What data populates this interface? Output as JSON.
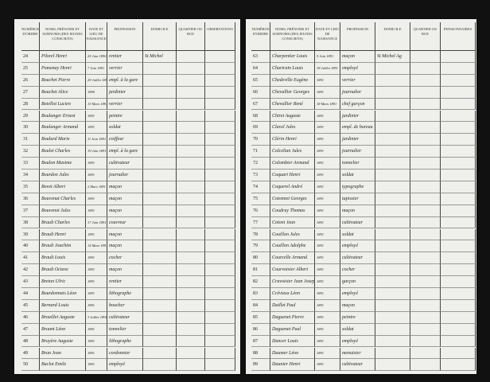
{
  "pages": [
    {
      "headers": [
        "Numéros d'ordre",
        "Noms, prénoms et surnoms (des jeunes conscrits)",
        "Date et lieu de naissance",
        "Profession",
        "Domicile",
        "Quartier ou rue",
        "Observations"
      ],
      "rows": [
        {
          "num": "24",
          "name": "Pilorel Henri",
          "birth": "25 Juin 1890",
          "profession": "rentier",
          "domicile": "St Michel"
        },
        {
          "num": "25",
          "name": "Pomenay Henri",
          "birth": "7 Juin 1891",
          "profession": "verrier"
        },
        {
          "num": "26",
          "name": "Bouchet Pierre",
          "birth": "29 Juillet 1891",
          "profession": "empl. à la gare"
        },
        {
          "num": "27",
          "name": "Bouchet Alice",
          "birth": "1890",
          "profession": "jardinier"
        },
        {
          "num": "28",
          "name": "Boiellot Lucien",
          "birth": "13 Mars 1891",
          "profession": "verrier"
        },
        {
          "num": "29",
          "name": "Boulanger Ernest",
          "birth": "1891",
          "profession": "peintre"
        },
        {
          "num": "30",
          "name": "Boulanger Armand",
          "birth": "1891",
          "profession": "soldat"
        },
        {
          "num": "31",
          "name": "Boulard Marie",
          "birth": "11 Juin 1891",
          "profession": "coiffeur"
        },
        {
          "num": "32",
          "name": "Boulet Charles",
          "birth": "19 Juin 1891",
          "profession": "empl. à la gare"
        },
        {
          "num": "33",
          "name": "Boulon Maxime",
          "birth": "1891",
          "profession": "cultivateur"
        },
        {
          "num": "34",
          "name": "Bourdon Jules",
          "birth": "1891",
          "profession": "journalier"
        },
        {
          "num": "35",
          "name": "Bovet Albert",
          "birth": "2 Mars 1891",
          "profession": "maçon"
        },
        {
          "num": "36",
          "name": "Bouvenat Charles",
          "birth": "1891",
          "profession": "maçon"
        },
        {
          "num": "37",
          "name": "Bouvenot Jules",
          "birth": "1891",
          "profession": "maçon"
        },
        {
          "num": "38",
          "name": "Brault Charles",
          "birth": "17 Juin 1891",
          "profession": "couvreur"
        },
        {
          "num": "39",
          "name": "Brault Henri",
          "birth": "1891",
          "profession": "maçon"
        },
        {
          "num": "40",
          "name": "Brault Joachim",
          "birth": "14 Mars 1891",
          "profession": "maçon"
        },
        {
          "num": "41",
          "name": "Brault Louis",
          "birth": "1891",
          "profession": "cocher"
        },
        {
          "num": "42",
          "name": "Brault Octave",
          "birth": "1891",
          "profession": "maçon"
        },
        {
          "num": "43",
          "name": "Breton Ulric",
          "birth": "1891",
          "profession": "rentier"
        },
        {
          "num": "44",
          "name": "Bourdonnais Léon",
          "birth": "1891",
          "profession": "lithographe"
        },
        {
          "num": "45",
          "name": "Bernard Louis",
          "birth": "1891",
          "profession": "boucher"
        },
        {
          "num": "46",
          "name": "Brouillet Auguste",
          "birth": "3 Juillet 1891",
          "profession": "cultivateur"
        },
        {
          "num": "47",
          "name": "Bruant Léon",
          "birth": "1891",
          "profession": "tonnelier"
        },
        {
          "num": "48",
          "name": "Bruyère Auguste",
          "birth": "1891",
          "profession": "lithographe"
        },
        {
          "num": "49",
          "name": "Brun Jean",
          "birth": "1891",
          "profession": "cordonnier"
        },
        {
          "num": "50",
          "name": "Buclot Emile",
          "birth": "1891",
          "profession": "employé"
        }
      ]
    },
    {
      "headers": [
        "Numéros d'ordre",
        "Noms, prénoms et surnoms (des jeunes conscrits)",
        "Date et lieu de naissance",
        "Profession",
        "Domicile",
        "Quartier ou rue",
        "Pensionnaires"
      ],
      "rows": [
        {
          "num": "63",
          "name": "Charpentier Louis",
          "birth": "5 Juin 1891",
          "profession": "maçon",
          "domicile": "St Michel Ag"
        },
        {
          "num": "64",
          "name": "Chartrain Louis",
          "birth": "18 Juillet 1891",
          "profession": "employé"
        },
        {
          "num": "65",
          "name": "Chedeville Eugène",
          "birth": "1891",
          "profession": "verrier"
        },
        {
          "num": "66",
          "name": "Chevallier Georges",
          "birth": "1891",
          "profession": "journalier"
        },
        {
          "num": "67",
          "name": "Chevallier René",
          "birth": "18 Mars 1891",
          "profession": "chef garçon"
        },
        {
          "num": "68",
          "name": "Chiret Auguste",
          "birth": "1891",
          "profession": "jardinier"
        },
        {
          "num": "69",
          "name": "Clavel Jules",
          "birth": "1891",
          "profession": "empl. de bureau"
        },
        {
          "num": "70",
          "name": "Clérin Henri",
          "birth": "1891",
          "profession": "jardinier"
        },
        {
          "num": "71",
          "name": "Colcelian Jules",
          "birth": "1891",
          "profession": "journalier"
        },
        {
          "num": "72",
          "name": "Colombier Armand",
          "birth": "1891",
          "profession": "tonnelier"
        },
        {
          "num": "73",
          "name": "Coquart Henri",
          "birth": "1891",
          "profession": "soldat"
        },
        {
          "num": "74",
          "name": "Coquerel André",
          "birth": "1891",
          "profession": "typographe"
        },
        {
          "num": "75",
          "name": "Cotonnet Georges",
          "birth": "1891",
          "profession": "tapissier"
        },
        {
          "num": "76",
          "name": "Coudray Thomas",
          "birth": "1891",
          "profession": "maçon"
        },
        {
          "num": "77",
          "name": "Cotoni Jean",
          "birth": "1891",
          "profession": "cultivateur"
        },
        {
          "num": "78",
          "name": "Couillon Jules",
          "birth": "1891",
          "profession": "soldat"
        },
        {
          "num": "79",
          "name": "Couillon Adolphe",
          "birth": "1891",
          "profession": "employé"
        },
        {
          "num": "80",
          "name": "Courcelle Armand",
          "birth": "1891",
          "profession": "cultivateur"
        },
        {
          "num": "81",
          "name": "Courvoisier Albert",
          "birth": "1891",
          "profession": "cocher"
        },
        {
          "num": "82",
          "name": "Cravoisier Jean Joseph",
          "birth": "1891",
          "profession": "garçon"
        },
        {
          "num": "83",
          "name": "Crévieux Léon",
          "birth": "1891",
          "profession": "employé"
        },
        {
          "num": "84",
          "name": "Daillet Paul",
          "birth": "1891",
          "profession": "maçon"
        },
        {
          "num": "85",
          "name": "Daguenet Pierre",
          "birth": "1891",
          "profession": "peintre"
        },
        {
          "num": "86",
          "name": "Daguenet Paul",
          "birth": "1891",
          "profession": "soldat"
        },
        {
          "num": "87",
          "name": "Dancer Louis",
          "birth": "1891",
          "profession": "employé"
        },
        {
          "num": "88",
          "name": "Daumer Léon",
          "birth": "1891",
          "profession": "menuisier"
        },
        {
          "num": "89",
          "name": "Daunier Henri",
          "birth": "1891",
          "profession": "cultivateur"
        }
      ]
    }
  ]
}
